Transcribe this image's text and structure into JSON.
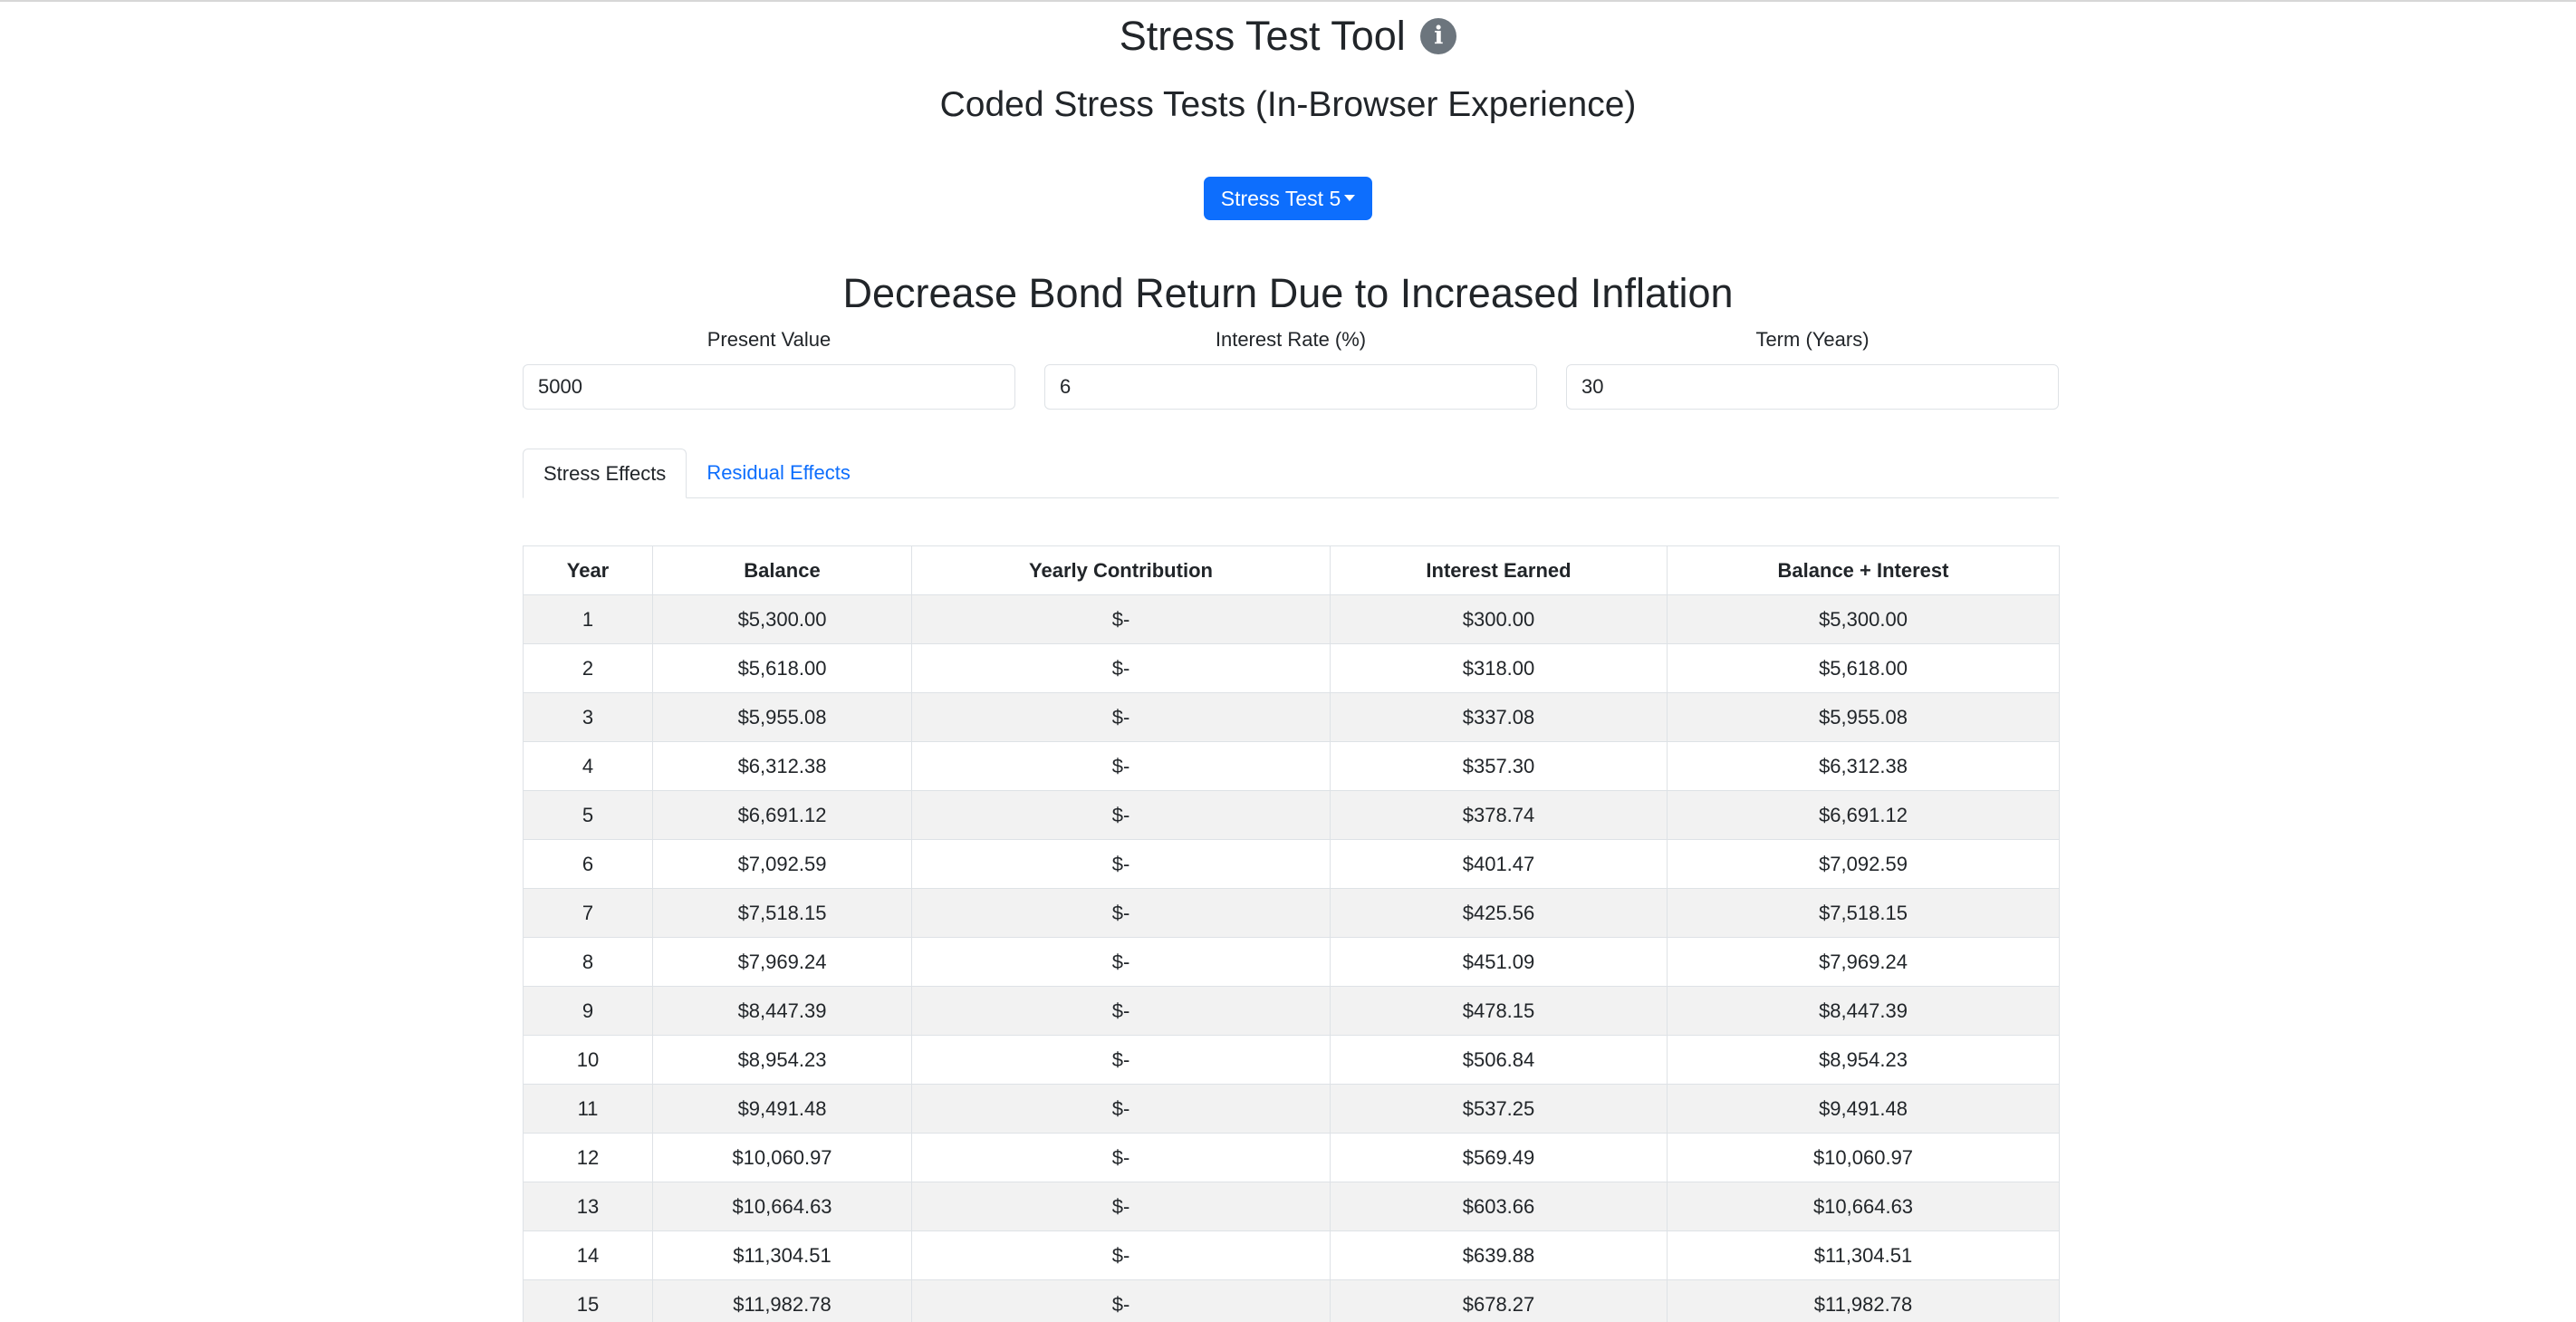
{
  "header": {
    "title": "Stress Test Tool",
    "info_icon": "info-icon",
    "subtitle": "Coded Stress Tests (In-Browser Experience)"
  },
  "dropdown": {
    "selected": "Stress Test 5"
  },
  "section": {
    "title": "Decrease Bond Return Due to Increased Inflation"
  },
  "inputs": {
    "present_value": {
      "label": "Present Value",
      "value": "5000"
    },
    "interest_rate": {
      "label": "Interest Rate (%)",
      "value": "6"
    },
    "term": {
      "label": "Term (Years)",
      "value": "30"
    }
  },
  "tabs": [
    {
      "label": "Stress Effects",
      "active": true
    },
    {
      "label": "Residual Effects",
      "active": false
    }
  ],
  "table": {
    "headers": [
      "Year",
      "Balance",
      "Yearly Contribution",
      "Interest Earned",
      "Balance + Interest"
    ],
    "rows": [
      [
        "1",
        "$5,300.00",
        "$-",
        "$300.00",
        "$5,300.00"
      ],
      [
        "2",
        "$5,618.00",
        "$-",
        "$318.00",
        "$5,618.00"
      ],
      [
        "3",
        "$5,955.08",
        "$-",
        "$337.08",
        "$5,955.08"
      ],
      [
        "4",
        "$6,312.38",
        "$-",
        "$357.30",
        "$6,312.38"
      ],
      [
        "5",
        "$6,691.12",
        "$-",
        "$378.74",
        "$6,691.12"
      ],
      [
        "6",
        "$7,092.59",
        "$-",
        "$401.47",
        "$7,092.59"
      ],
      [
        "7",
        "$7,518.15",
        "$-",
        "$425.56",
        "$7,518.15"
      ],
      [
        "8",
        "$7,969.24",
        "$-",
        "$451.09",
        "$7,969.24"
      ],
      [
        "9",
        "$8,447.39",
        "$-",
        "$478.15",
        "$8,447.39"
      ],
      [
        "10",
        "$8,954.23",
        "$-",
        "$506.84",
        "$8,954.23"
      ],
      [
        "11",
        "$9,491.48",
        "$-",
        "$537.25",
        "$9,491.48"
      ],
      [
        "12",
        "$10,060.97",
        "$-",
        "$569.49",
        "$10,060.97"
      ],
      [
        "13",
        "$10,664.63",
        "$-",
        "$603.66",
        "$10,664.63"
      ],
      [
        "14",
        "$11,304.51",
        "$-",
        "$639.88",
        "$11,304.51"
      ],
      [
        "15",
        "$11,982.78",
        "$-",
        "$678.27",
        "$11,982.78"
      ]
    ]
  },
  "colors": {
    "primary": "#0d6efd",
    "info_icon_bg": "#6c757d",
    "stripe": "#f2f2f2",
    "border": "#dee2e6",
    "text": "#212529"
  }
}
